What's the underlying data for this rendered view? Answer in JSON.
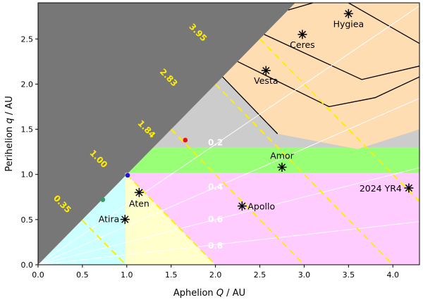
{
  "chart_data": {
    "type": "scatter",
    "title": "",
    "xlabel_main": "Aphelion ",
    "xlabel_var": "Q",
    "xlabel_unit": " / AU",
    "ylabel_main": "Perihelion ",
    "ylabel_var": "q",
    "ylabel_unit": " / AU",
    "xlim": [
      0,
      4.3
    ],
    "ylim": [
      0,
      2.9
    ],
    "xticks": [
      0.0,
      0.5,
      1.0,
      1.5,
      2.0,
      2.5,
      3.0,
      3.5,
      4.0
    ],
    "xtick_labels": [
      "0.0",
      "0.5",
      "1.0",
      "1.5",
      "2.0",
      "2.5",
      "3.0",
      "3.5",
      "4.0"
    ],
    "yticks": [
      0.0,
      0.5,
      1.0,
      1.5,
      2.0,
      2.5
    ],
    "ytick_labels": [
      "0.0",
      "0.5",
      "1.0",
      "1.5",
      "2.0",
      "2.5"
    ],
    "colors": {
      "forbidden": "#777777",
      "background": "#cccccc",
      "atira": "#ccffff",
      "aten": "#ffffcc",
      "apollo": "#ffccff",
      "amor": "#99ff77",
      "belt": "#ffddb3",
      "period_line": "#ffee00",
      "ecc_line": "#ffffff",
      "marker": "#000000",
      "mercury": "#3a9a6a",
      "earth": "#1a1acc",
      "mars": "#ee1111"
    },
    "objects": [
      {
        "name": "Atira",
        "q": 0.502,
        "Q": 0.98
      },
      {
        "name": "Aten",
        "q": 0.8,
        "Q": 1.14
      },
      {
        "name": "Apollo",
        "q": 0.65,
        "Q": 2.3
      },
      {
        "name": "Amor",
        "q": 1.08,
        "Q": 2.75
      },
      {
        "name": "2024 YR4",
        "q": 0.85,
        "Q": 4.18
      },
      {
        "name": "Vesta",
        "q": 2.15,
        "Q": 2.57
      },
      {
        "name": "Ceres",
        "q": 2.55,
        "Q": 2.98
      },
      {
        "name": "Hygiea",
        "q": 2.78,
        "Q": 3.5
      }
    ],
    "planets": [
      {
        "key": "mercury",
        "q": 0.72,
        "Q": 0.73
      },
      {
        "key": "earth",
        "q": 0.99,
        "Q": 1.01
      },
      {
        "key": "mars",
        "q": 1.38,
        "Q": 1.66
      }
    ],
    "period_lines": [
      {
        "label": "0.35",
        "sum": 0.99
      },
      {
        "label": "1.00",
        "sum": 2.0
      },
      {
        "label": "1.84",
        "sum": 3.0
      },
      {
        "label": "2.83",
        "sum": 4.0
      },
      {
        "label": "3.95",
        "sum": 5.0
      }
    ],
    "eccentricity_lines": [
      {
        "label": "0.2",
        "e": 0.2
      },
      {
        "label": "0.4",
        "e": 0.4
      },
      {
        "label": "0.6",
        "e": 0.6
      },
      {
        "label": "0.8",
        "e": 0.8
      }
    ]
  }
}
